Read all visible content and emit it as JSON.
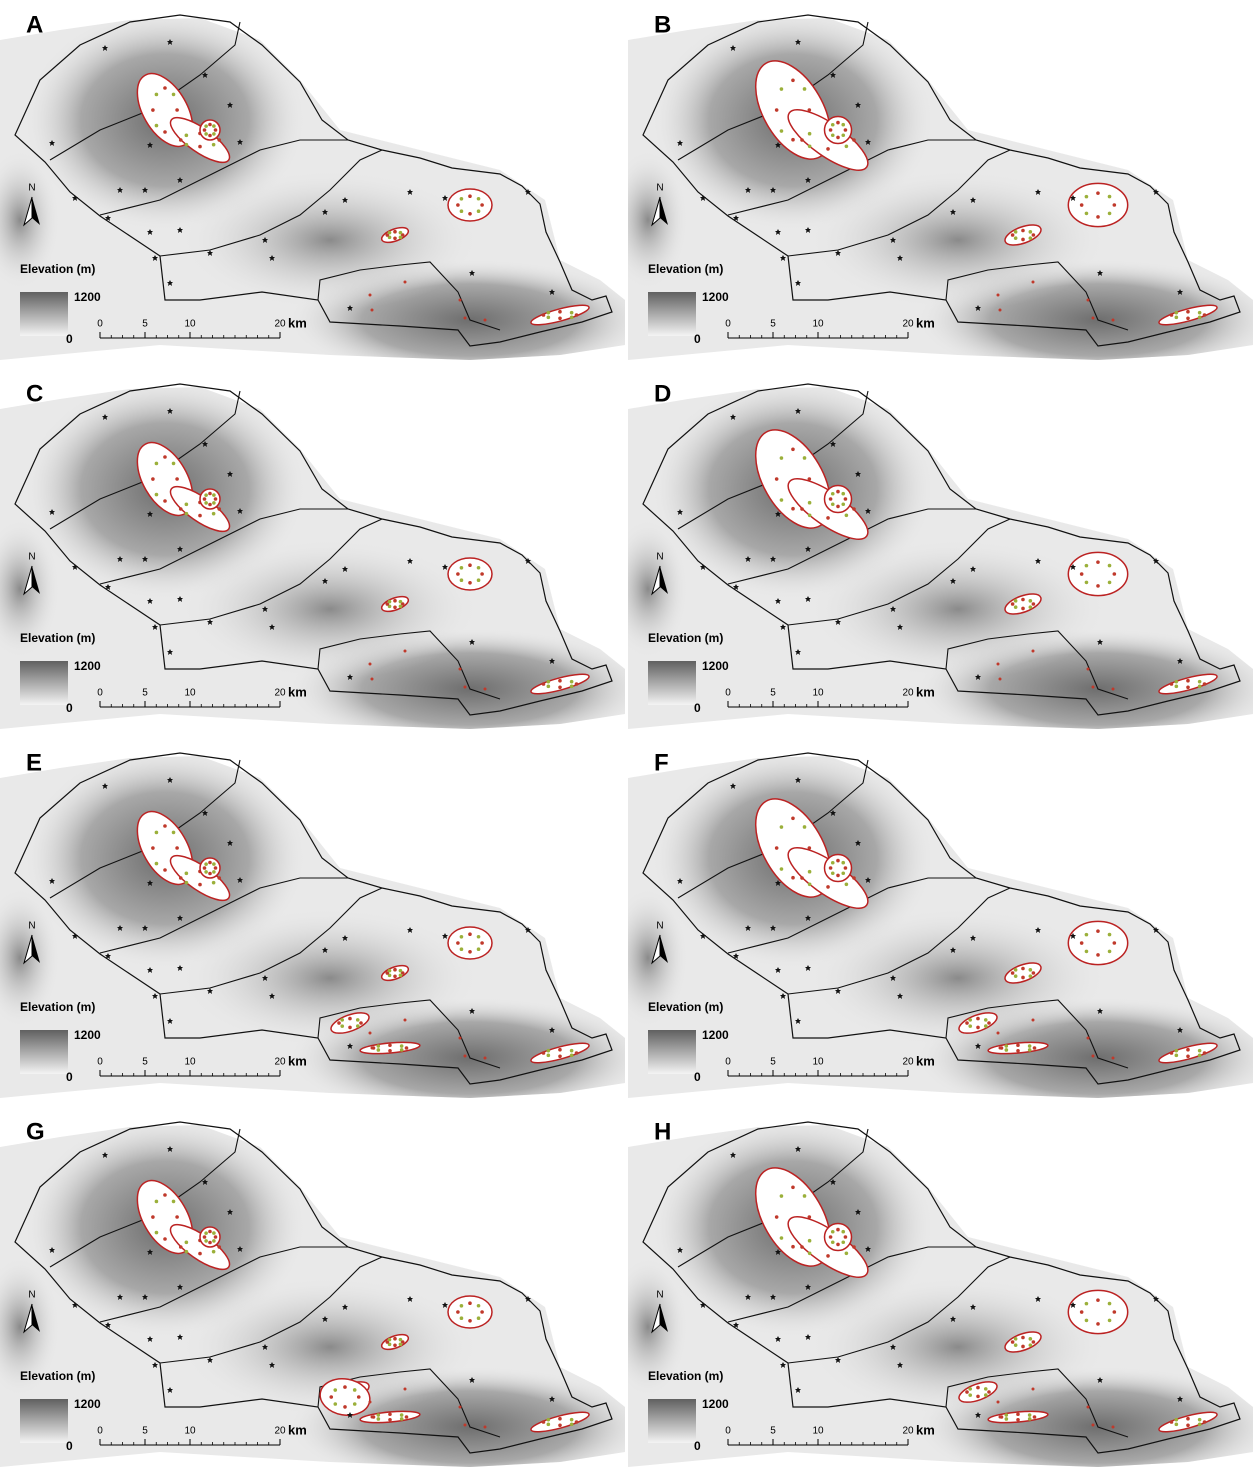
{
  "panels": [
    {
      "label": "A",
      "legend_title": "Elevation (m)",
      "legend_max": 1200,
      "legend_min": 0,
      "scale_ticks": [
        0,
        5,
        10,
        20
      ],
      "scale_unit": "km",
      "north": "N"
    },
    {
      "label": "B",
      "legend_title": "Elevation (m)",
      "legend_max": 1200,
      "legend_min": 0,
      "scale_ticks": [
        0,
        5,
        10,
        20
      ],
      "scale_unit": "km",
      "north": "N"
    },
    {
      "label": "C",
      "legend_title": "Elevation (m)",
      "legend_max": 1200,
      "legend_min": 0,
      "scale_ticks": [
        0,
        5,
        10,
        20
      ],
      "scale_unit": "km",
      "north": "N"
    },
    {
      "label": "D",
      "legend_title": "Elevation (m)",
      "legend_max": 1200,
      "legend_min": 0,
      "scale_ticks": [
        0,
        5,
        10,
        20
      ],
      "scale_unit": "km",
      "north": "N"
    },
    {
      "label": "E",
      "legend_title": "Elevation (m)",
      "legend_max": 1200,
      "legend_min": 0,
      "scale_ticks": [
        0,
        5,
        10,
        20
      ],
      "scale_unit": "km",
      "north": "N"
    },
    {
      "label": "F",
      "legend_title": "Elevation (m)",
      "legend_max": 1200,
      "legend_min": 0,
      "scale_ticks": [
        0,
        5,
        10,
        20
      ],
      "scale_unit": "km",
      "north": "N"
    },
    {
      "label": "G",
      "legend_title": "Elevation (m)",
      "legend_max": 1200,
      "legend_min": 0,
      "scale_ticks": [
        0,
        5,
        10,
        20
      ],
      "scale_unit": "km",
      "north": "N"
    },
    {
      "label": "H",
      "legend_title": "Elevation (m)",
      "legend_max": 1200,
      "legend_min": 0,
      "scale_ticks": [
        0,
        5,
        10,
        20
      ],
      "scale_unit": "km",
      "north": "N"
    }
  ]
}
